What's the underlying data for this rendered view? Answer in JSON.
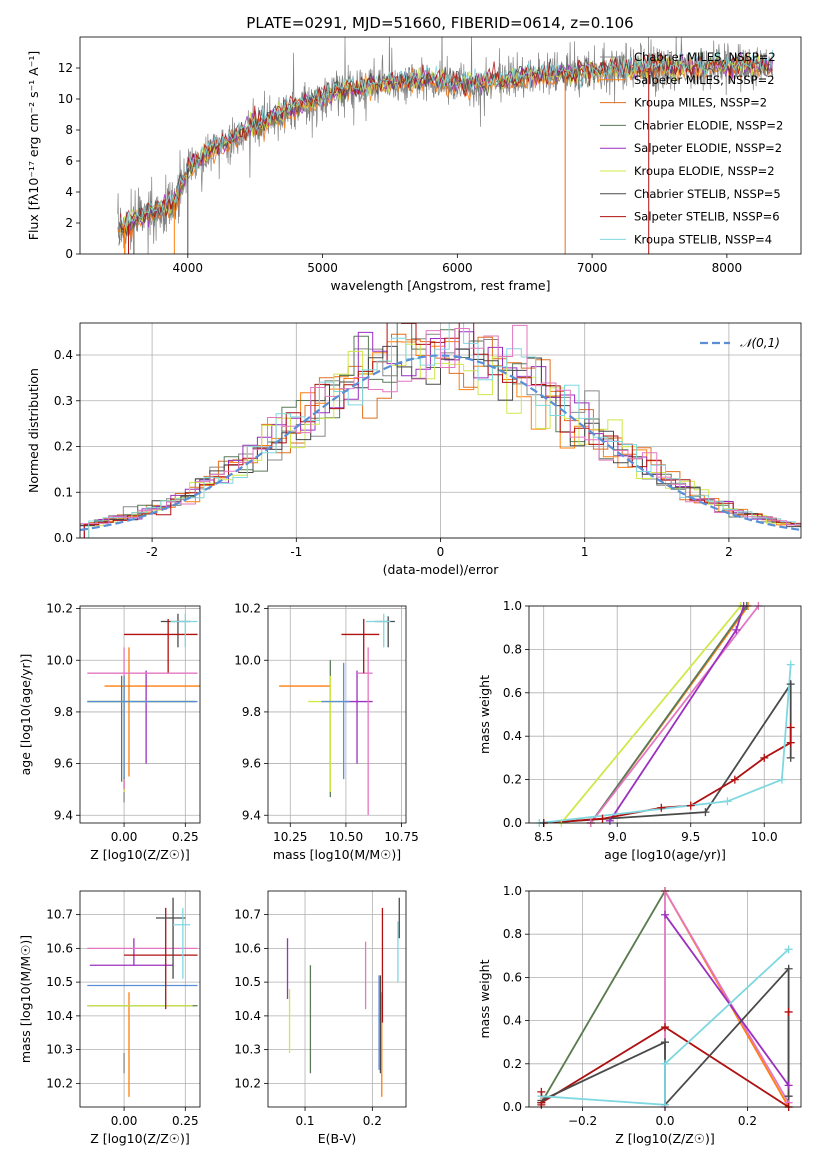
{
  "figure_title": "PLATE=0291, MJD=51660, FIBERID=0614, z=0.106",
  "colors": {
    "Chabrier MILES": "#888888",
    "Salpeter MILES": "#ff7f0e",
    "Kroupa MILES": "#e07020",
    "Chabrier ELODIE": "#5a7a5a",
    "Salpeter ELODIE": "#9b30c0",
    "Kroupa ELODIE": "#cfe84a",
    "Chabrier STELIB": "#4a4a4a",
    "Salpeter STELIB": "#b01010",
    "Kroupa STELIB": "#7fd8e0",
    "pink": "#e377c2",
    "blue": "#5a8fd6",
    "gray_spectrum": "#808080"
  },
  "chart_data": [
    {
      "id": "spectrum",
      "type": "line",
      "title": "PLATE=0291, MJD=51660, FIBERID=0614, z=0.106",
      "xlabel": "wavelength [Angstrom, rest frame]",
      "ylabel": "Flux [fλ10⁻¹⁷ erg cm⁻² s⁻¹ A⁻¹]",
      "xlim": [
        3200,
        8550
      ],
      "ylim": [
        0,
        14
      ],
      "xticks": [
        4000,
        5000,
        6000,
        7000,
        8000
      ],
      "yticks": [
        0,
        2,
        4,
        6,
        8,
        10,
        12
      ],
      "grid": false,
      "legend_position": "right",
      "legend": [
        {
          "label": "Chabrier MILES, NSSP=2",
          "color": "#888888"
        },
        {
          "label": "Salpeter MILES, NSSP=2",
          "color": "#ff7f0e"
        },
        {
          "label": "Kroupa MILES, NSSP=2",
          "color": "#e07020"
        },
        {
          "label": "Chabrier ELODIE, NSSP=2",
          "color": "#5a7a5a"
        },
        {
          "label": "Salpeter ELODIE, NSSP=2",
          "color": "#9b30c0"
        },
        {
          "label": "Kroupa ELODIE, NSSP=2",
          "color": "#cfe84a"
        },
        {
          "label": "Chabrier STELIB, NSSP=5",
          "color": "#4a4a4a"
        },
        {
          "label": "Salpeter STELIB, NSSP=6",
          "color": "#b01010"
        },
        {
          "label": "Kroupa STELIB, NSSP=4",
          "color": "#7fd8e0"
        }
      ],
      "continuum": {
        "x": [
          3500,
          3700,
          3900,
          4000,
          4200,
          4500,
          4800,
          5000,
          5200,
          5500,
          5800,
          6000,
          6300,
          6600,
          7000,
          7300,
          7600,
          7900,
          8200,
          8350
        ],
        "y": [
          1.6,
          2.6,
          3.3,
          5.5,
          6.8,
          8.3,
          9.5,
          10.1,
          10.7,
          11.0,
          11.3,
          10.9,
          11.2,
          11.5,
          11.8,
          12.0,
          12.0,
          12.1,
          12.2,
          12.1
        ]
      }
    },
    {
      "id": "residuals",
      "type": "histogram",
      "xlabel": "(data-model)/error",
      "ylabel": "Normed distribution",
      "xlim": [
        -2.5,
        2.5
      ],
      "ylim": [
        0,
        0.47
      ],
      "xticks": [
        -2,
        -1,
        0,
        1,
        2
      ],
      "yticks": [
        0.0,
        0.1,
        0.2,
        0.3,
        0.4
      ],
      "grid": true,
      "legend_position": "top-right",
      "reference_curve": {
        "label": "𝒩(0,1)",
        "type": "normal",
        "mean": 0,
        "sigma": 1,
        "color": "#5a8fd6"
      }
    },
    {
      "id": "age_vs_Z",
      "type": "errorbar",
      "xlabel": "Z [log10(Z/Z☉)]",
      "ylabel": "age  [log10(age/yr)]",
      "xlim": [
        -0.18,
        0.31
      ],
      "ylim": [
        9.37,
        10.21
      ],
      "xticks": [
        0.0,
        0.25
      ],
      "xticklabels": [
        "0.00",
        "0.25"
      ],
      "yticks": [
        9.4,
        9.6,
        9.8,
        10.0,
        10.2
      ],
      "grid": true,
      "points": [
        {
          "color": "#888888",
          "x": 0.0,
          "xerr": [
            0.0,
            0.0
          ],
          "y": 9.5,
          "yerr": [
            0.05,
            0.05
          ]
        },
        {
          "color": "#ff7f0e",
          "x": 0.02,
          "xerr": [
            0.1,
            0.3
          ],
          "y": 9.9,
          "yerr": [
            0.35,
            0.15
          ]
        },
        {
          "color": "#5a7a5a",
          "x": -0.01,
          "xerr": [
            0.14,
            0.3
          ],
          "y": 9.84,
          "yerr": [
            0.31,
            0.1
          ]
        },
        {
          "color": "#9b30c0",
          "x": 0.09,
          "xerr": [
            0.0,
            0.0
          ],
          "y": 9.84,
          "yerr": [
            0.24,
            0.12
          ]
        },
        {
          "color": "#cfe84a",
          "x": 0.0,
          "xerr": [
            0.15,
            0.28
          ],
          "y": 9.84,
          "yerr": [
            0.35,
            0.1
          ]
        },
        {
          "color": "#4a4a4a",
          "x": 0.22,
          "xerr": [
            0.07,
            0.05
          ],
          "y": 10.15,
          "yerr": [
            0.1,
            0.03
          ]
        },
        {
          "color": "#b01010",
          "x": 0.18,
          "xerr": [
            0.18,
            0.12
          ],
          "y": 10.1,
          "yerr": [
            0.15,
            0.06
          ]
        },
        {
          "color": "#7fd8e0",
          "x": 0.25,
          "xerr": [
            0.06,
            0.05
          ],
          "y": 10.15,
          "yerr": [
            0.1,
            0.03
          ]
        },
        {
          "color": "#e377c2",
          "x": 0.0,
          "xerr": [
            0.15,
            0.3
          ],
          "y": 9.95,
          "yerr": [
            0.45,
            0.1
          ]
        },
        {
          "color": "#5a8fd6",
          "x": 0.0,
          "xerr": [
            0.15,
            0.3
          ],
          "y": 9.84,
          "yerr": [
            0.3,
            0.1
          ]
        }
      ]
    },
    {
      "id": "age_vs_mass",
      "type": "errorbar",
      "xlabel": "mass [log10(M/M☉)]",
      "xlim": [
        10.15,
        10.77
      ],
      "ylim": [
        9.37,
        10.21
      ],
      "xticks": [
        10.25,
        10.5,
        10.75
      ],
      "xticklabels": [
        "10.25",
        "10.50",
        "10.75"
      ],
      "yticks": [
        9.4,
        9.6,
        9.8,
        10.0,
        10.2
      ],
      "grid": true,
      "points": [
        {
          "color": "#ff7f0e",
          "x": 10.3,
          "xerr": [
            0.1,
            0.13
          ],
          "y": 9.9,
          "yerr": [
            0.0,
            0.0
          ]
        },
        {
          "color": "#5a7a5a",
          "x": 10.43,
          "xerr": [
            0.0,
            0.0
          ],
          "y": 9.84,
          "yerr": [
            0.37,
            0.16
          ]
        },
        {
          "color": "#cfe84a",
          "x": 10.43,
          "xerr": [
            0.1,
            0.05
          ],
          "y": 9.84,
          "yerr": [
            0.35,
            0.1
          ]
        },
        {
          "color": "#9b30c0",
          "x": 10.55,
          "xerr": [
            0.05,
            0.07
          ],
          "y": 9.84,
          "yerr": [
            0.24,
            0.12
          ]
        },
        {
          "color": "#5a8fd6",
          "x": 10.49,
          "xerr": [
            0.1,
            0.03
          ],
          "y": 9.84,
          "yerr": [
            0.3,
            0.15
          ]
        },
        {
          "color": "#e377c2",
          "x": 10.6,
          "xerr": [
            0.05,
            0.02
          ],
          "y": 9.95,
          "yerr": [
            0.55,
            0.1
          ]
        },
        {
          "color": "#b01010",
          "x": 10.58,
          "xerr": [
            0.1,
            0.07
          ],
          "y": 10.1,
          "yerr": [
            0.15,
            0.06
          ]
        },
        {
          "color": "#4a4a4a",
          "x": 10.69,
          "xerr": [
            0.06,
            0.03
          ],
          "y": 10.15,
          "yerr": [
            0.1,
            0.02
          ]
        },
        {
          "color": "#7fd8e0",
          "x": 10.67,
          "xerr": [
            0.08,
            0.03
          ],
          "y": 10.15,
          "yerr": [
            0.1,
            0.03
          ]
        }
      ]
    },
    {
      "id": "weight_vs_age",
      "type": "line",
      "xlabel": "age  [log10(age/yr)]",
      "ylabel": "mass weight",
      "xlim": [
        8.4,
        10.25
      ],
      "ylim": [
        0,
        1
      ],
      "xticks": [
        8.5,
        9.0,
        9.5,
        10.0
      ],
      "xticklabels": [
        "8.5",
        "9.0",
        "9.5",
        "10.0"
      ],
      "yticks": [
        0.0,
        0.2,
        0.4,
        0.6,
        0.8,
        1.0
      ],
      "grid": true,
      "series": [
        {
          "color": "#cfe84a",
          "x": [
            8.62,
            9.84
          ],
          "y": [
            0.0,
            1.0
          ]
        },
        {
          "color": "#ff7f0e",
          "x": [
            8.82,
            9.89
          ],
          "y": [
            0.0,
            1.0
          ]
        },
        {
          "color": "#5a7a5a",
          "x": [
            8.82,
            9.88
          ],
          "y": [
            0.0,
            1.0
          ]
        },
        {
          "color": "#e377c2",
          "x": [
            8.82,
            9.96
          ],
          "y": [
            0.0,
            1.0
          ]
        },
        {
          "color": "#9b30c0",
          "x": [
            8.95,
            9.81,
            9.86
          ],
          "y": [
            0.01,
            0.89,
            1.0
          ]
        },
        {
          "color": "#4a4a4a",
          "x": [
            8.5,
            9.6,
            10.18,
            10.18
          ],
          "y": [
            0.0,
            0.05,
            0.64,
            0.3
          ]
        },
        {
          "color": "#b01010",
          "x": [
            8.5,
            8.9,
            9.3,
            9.5,
            9.8,
            10.0,
            10.18,
            10.18
          ],
          "y": [
            0.0,
            0.02,
            0.07,
            0.08,
            0.2,
            0.3,
            0.37,
            0.44
          ]
        },
        {
          "color": "#7fd8e0",
          "x": [
            8.47,
            9.75,
            10.12,
            10.18
          ],
          "y": [
            0.0,
            0.1,
            0.2,
            0.73
          ]
        }
      ]
    },
    {
      "id": "mass_vs_Z",
      "type": "errorbar",
      "xlabel": "Z [log10(Z/Z☉)]",
      "ylabel": "mass [log10(M/M☉)]",
      "xlim": [
        -0.18,
        0.31
      ],
      "ylim": [
        10.13,
        10.77
      ],
      "xticks": [
        0.0,
        0.25
      ],
      "xticklabels": [
        "0.00",
        "0.25"
      ],
      "yticks": [
        10.2,
        10.3,
        10.4,
        10.5,
        10.6,
        10.7
      ],
      "grid": true,
      "points": [
        {
          "color": "#888888",
          "x": 0.0,
          "xerr": [
            0.0,
            0.0
          ],
          "y": 10.26,
          "yerr": [
            0.03,
            0.03
          ]
        },
        {
          "color": "#ff7f0e",
          "x": 0.02,
          "xerr": [
            0.0,
            0.0
          ],
          "y": 10.3,
          "yerr": [
            0.14,
            0.17
          ]
        },
        {
          "color": "#5a7a5a",
          "x": 0.0,
          "xerr": [
            0.15,
            0.3
          ],
          "y": 10.43,
          "yerr": [
            0.0,
            0.0
          ]
        },
        {
          "color": "#cfe84a",
          "x": 0.0,
          "xerr": [
            0.15,
            0.28
          ],
          "y": 10.43,
          "yerr": [
            0.0,
            0.0
          ]
        },
        {
          "color": "#9b30c0",
          "x": 0.04,
          "xerr": [
            0.18,
            0.16
          ],
          "y": 10.55,
          "yerr": [
            0.0,
            0.08
          ]
        },
        {
          "color": "#5a8fd6",
          "x": 0.0,
          "xerr": [
            0.15,
            0.3
          ],
          "y": 10.49,
          "yerr": [
            0.0,
            0.0
          ]
        },
        {
          "color": "#e377c2",
          "x": 0.0,
          "xerr": [
            0.15,
            0.3
          ],
          "y": 10.6,
          "yerr": [
            0.0,
            0.0
          ]
        },
        {
          "color": "#b01010",
          "x": 0.17,
          "xerr": [
            0.17,
            0.13
          ],
          "y": 10.58,
          "yerr": [
            0.16,
            0.14
          ]
        },
        {
          "color": "#4a4a4a",
          "x": 0.2,
          "xerr": [
            0.07,
            0.05
          ],
          "y": 10.69,
          "yerr": [
            0.18,
            0.06
          ]
        },
        {
          "color": "#7fd8e0",
          "x": 0.24,
          "xerr": [
            0.04,
            0.03
          ],
          "y": 10.67,
          "yerr": [
            0.16,
            0.05
          ]
        }
      ]
    },
    {
      "id": "mass_vs_ebv",
      "type": "errorbar",
      "xlabel": "E(B-V)",
      "xlim": [
        0.045,
        0.25
      ],
      "ylim": [
        10.13,
        10.77
      ],
      "xticks": [
        0.1,
        0.2
      ],
      "xticklabels": [
        "0.1",
        "0.2"
      ],
      "yticks": [
        10.2,
        10.3,
        10.4,
        10.5,
        10.6,
        10.7
      ],
      "grid": true,
      "points": [
        {
          "color": "#9b30c0",
          "x": 0.074,
          "y": 10.55,
          "yerr": [
            0.1,
            0.08
          ]
        },
        {
          "color": "#cfe84a",
          "x": 0.077,
          "y": 10.43,
          "yerr": [
            0.14,
            0.05
          ]
        },
        {
          "color": "#5a7a5a",
          "x": 0.108,
          "y": 10.43,
          "yerr": [
            0.2,
            0.12
          ]
        },
        {
          "color": "#e377c2",
          "x": 0.19,
          "y": 10.58,
          "yerr": [
            0.16,
            0.04
          ]
        },
        {
          "color": "#5a8fd6",
          "x": 0.21,
          "y": 10.49,
          "yerr": [
            0.25,
            0.03
          ]
        },
        {
          "color": "#4a4a4a",
          "x": 0.212,
          "y": 10.45,
          "yerr": [
            0.22,
            0.07
          ]
        },
        {
          "color": "#ff7f0e",
          "x": 0.214,
          "y": 10.3,
          "yerr": [
            0.14,
            0.17
          ]
        },
        {
          "color": "#b01010",
          "x": 0.215,
          "y": 10.58,
          "yerr": [
            0.2,
            0.14
          ]
        },
        {
          "color": "#7fd8e0",
          "x": 0.238,
          "y": 10.6,
          "yerr": [
            0.1,
            0.08
          ]
        },
        {
          "color": "#4a4a4a",
          "x": 0.24,
          "y": 10.69,
          "yerr": [
            0.06,
            0.06
          ]
        }
      ]
    },
    {
      "id": "weight_vs_Z",
      "type": "line",
      "xlabel": "Z [log10(Z/Z☉)]",
      "ylabel": "mass weight",
      "xlim": [
        -0.33,
        0.33
      ],
      "ylim": [
        0,
        1
      ],
      "xticks": [
        -0.2,
        0.0,
        0.2
      ],
      "xticklabels": [
        "−0.2",
        "0.0",
        "0.2"
      ],
      "yticks": [
        0.0,
        0.2,
        0.4,
        0.6,
        0.8,
        1.0
      ],
      "grid": true,
      "series": [
        {
          "color": "#cfe84a",
          "x": [
            -0.3,
            0.0
          ],
          "y": [
            0.02,
            1.0
          ]
        },
        {
          "color": "#5a7a5a",
          "x": [
            -0.3,
            0.0
          ],
          "y": [
            0.02,
            1.0
          ]
        },
        {
          "color": "#ff7f0e",
          "x": [
            0.0,
            0.3
          ],
          "y": [
            1.0,
            0.0
          ]
        },
        {
          "color": "#e377c2",
          "x": [
            0.0,
            0.0,
            0.3
          ],
          "y": [
            0.0,
            1.0,
            0.02
          ]
        },
        {
          "color": "#9b30c0",
          "x": [
            0.0,
            0.3
          ],
          "y": [
            0.89,
            0.1
          ]
        },
        {
          "color": "#b01010",
          "x": [
            -0.3,
            0.0,
            0.3,
            0.3
          ],
          "y": [
            0.02,
            0.37,
            0.0,
            0.44
          ]
        },
        {
          "color": "#4a4a4a",
          "x": [
            -0.3,
            0.0,
            0.0,
            0.3,
            0.3
          ],
          "y": [
            0.03,
            0.3,
            0.01,
            0.64,
            0.05
          ]
        },
        {
          "color": "#7fd8e0",
          "x": [
            -0.3,
            0.0,
            0.0,
            0.3
          ],
          "y": [
            0.05,
            0.01,
            0.2,
            0.73
          ]
        },
        {
          "color": "#b01010",
          "x": [
            -0.3,
            -0.3
          ],
          "y": [
            0.01,
            0.07
          ]
        }
      ]
    }
  ]
}
